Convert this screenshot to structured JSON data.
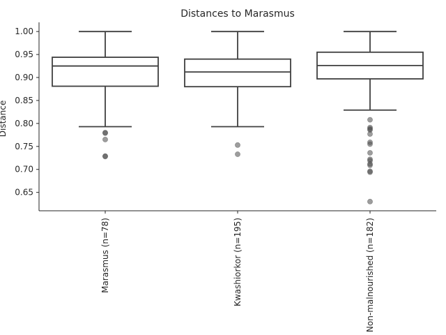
{
  "chart_data": {
    "type": "box",
    "title": "Distances to Marasmus",
    "xlabel": "",
    "ylabel": "Distance",
    "ylim": [
      0.61,
      1.02
    ],
    "yticks": [
      0.65,
      0.7,
      0.75,
      0.8,
      0.85,
      0.9,
      0.95,
      1.0
    ],
    "ytick_labels": [
      "0.65",
      "0.70",
      "0.75",
      "0.80",
      "0.85",
      "0.90",
      "0.95",
      "1.00"
    ],
    "grid": false,
    "categories": [
      "Marasmus (n=78)",
      "Kwashiorkor (n=195)",
      "Non-malnourished (n=182)"
    ],
    "boxes": [
      {
        "whisker_low": 0.793,
        "q1": 0.881,
        "median": 0.925,
        "q3": 0.944,
        "whisker_high": 1.0,
        "outliers": [
          0.78,
          0.779,
          0.765,
          0.729,
          0.728
        ]
      },
      {
        "whisker_low": 0.793,
        "q1": 0.88,
        "median": 0.912,
        "q3": 0.94,
        "whisker_high": 1.0,
        "outliers": [
          0.753,
          0.733
        ]
      },
      {
        "whisker_low": 0.829,
        "q1": 0.897,
        "median": 0.926,
        "q3": 0.955,
        "whisker_high": 1.0,
        "outliers": [
          0.808,
          0.791,
          0.788,
          0.786,
          0.777,
          0.759,
          0.755,
          0.736,
          0.722,
          0.719,
          0.712,
          0.709,
          0.696,
          0.694,
          0.63
        ]
      }
    ],
    "colors": {
      "box_edge": "#3f3f3f",
      "outlier": "#4d4d4d",
      "axis": "#262626"
    }
  }
}
